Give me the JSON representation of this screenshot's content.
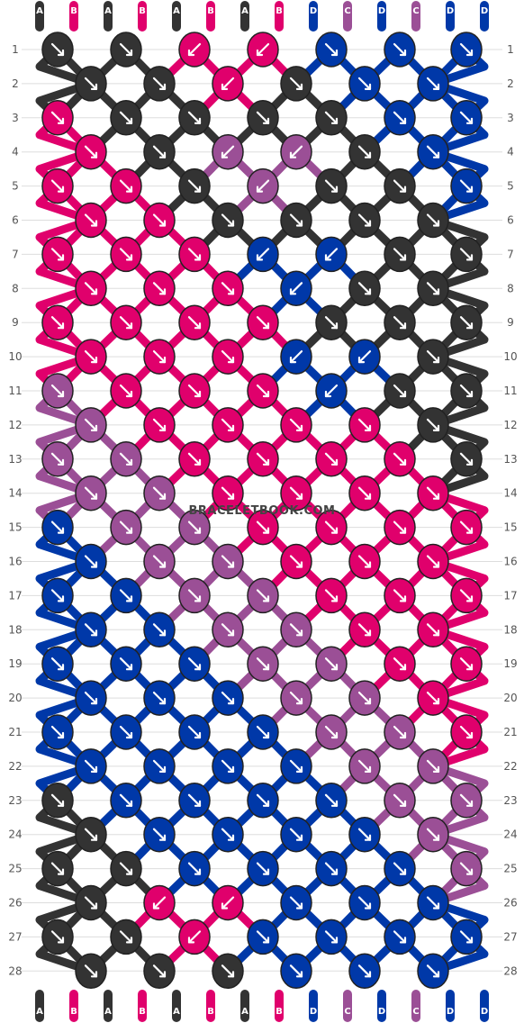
{
  "watermark": "BRACELETBOOK.COM",
  "colors": {
    "A": "#333333",
    "B": "#e0006c",
    "C": "#9b4f96",
    "D": "#0038a8"
  },
  "strands": [
    "A",
    "B",
    "A",
    "B",
    "A",
    "B",
    "A",
    "B",
    "D",
    "C",
    "D",
    "C",
    "D",
    "D"
  ],
  "rows": [
    {
      "n": "1",
      "knots": [
        {
          "c": "A",
          "d": "r"
        },
        {
          "c": "A",
          "d": "r"
        },
        {
          "c": "B",
          "d": "l"
        },
        {
          "c": "B",
          "d": "l"
        },
        {
          "c": "D",
          "d": "r"
        },
        {
          "c": "D",
          "d": "r"
        },
        {
          "c": "D",
          "d": "r"
        }
      ]
    },
    {
      "n": "2",
      "knots": [
        {
          "c": "A",
          "d": "r"
        },
        {
          "c": "A",
          "d": "r"
        },
        {
          "c": "B",
          "d": "l"
        },
        {
          "c": "A",
          "d": "r"
        },
        {
          "c": "D",
          "d": "r"
        },
        {
          "c": "D",
          "d": "r"
        }
      ]
    },
    {
      "n": "3",
      "knots": [
        {
          "c": "B",
          "d": "r"
        },
        {
          "c": "A",
          "d": "r"
        },
        {
          "c": "A",
          "d": "r"
        },
        {
          "c": "A",
          "d": "r"
        },
        {
          "c": "A",
          "d": "r"
        },
        {
          "c": "D",
          "d": "r"
        },
        {
          "c": "D",
          "d": "r"
        }
      ]
    },
    {
      "n": "4",
      "knots": [
        {
          "c": "B",
          "d": "r"
        },
        {
          "c": "A",
          "d": "r"
        },
        {
          "c": "C",
          "d": "l"
        },
        {
          "c": "C",
          "d": "l"
        },
        {
          "c": "A",
          "d": "r"
        },
        {
          "c": "D",
          "d": "r"
        }
      ]
    },
    {
      "n": "5",
      "knots": [
        {
          "c": "B",
          "d": "r"
        },
        {
          "c": "B",
          "d": "r"
        },
        {
          "c": "A",
          "d": "r"
        },
        {
          "c": "C",
          "d": "l"
        },
        {
          "c": "A",
          "d": "r"
        },
        {
          "c": "A",
          "d": "r"
        },
        {
          "c": "D",
          "d": "r"
        }
      ]
    },
    {
      "n": "6",
      "knots": [
        {
          "c": "B",
          "d": "r"
        },
        {
          "c": "B",
          "d": "r"
        },
        {
          "c": "A",
          "d": "r"
        },
        {
          "c": "A",
          "d": "r"
        },
        {
          "c": "A",
          "d": "r"
        },
        {
          "c": "A",
          "d": "r"
        }
      ]
    },
    {
      "n": "7",
      "knots": [
        {
          "c": "B",
          "d": "r"
        },
        {
          "c": "B",
          "d": "r"
        },
        {
          "c": "B",
          "d": "r"
        },
        {
          "c": "D",
          "d": "l"
        },
        {
          "c": "D",
          "d": "l"
        },
        {
          "c": "A",
          "d": "r"
        },
        {
          "c": "A",
          "d": "r"
        }
      ]
    },
    {
      "n": "8",
      "knots": [
        {
          "c": "B",
          "d": "r"
        },
        {
          "c": "B",
          "d": "r"
        },
        {
          "c": "B",
          "d": "r"
        },
        {
          "c": "D",
          "d": "l"
        },
        {
          "c": "A",
          "d": "r"
        },
        {
          "c": "A",
          "d": "r"
        }
      ]
    },
    {
      "n": "9",
      "knots": [
        {
          "c": "B",
          "d": "r"
        },
        {
          "c": "B",
          "d": "r"
        },
        {
          "c": "B",
          "d": "r"
        },
        {
          "c": "B",
          "d": "r"
        },
        {
          "c": "A",
          "d": "r"
        },
        {
          "c": "A",
          "d": "r"
        },
        {
          "c": "A",
          "d": "r"
        }
      ]
    },
    {
      "n": "10",
      "knots": [
        {
          "c": "B",
          "d": "r"
        },
        {
          "c": "B",
          "d": "r"
        },
        {
          "c": "B",
          "d": "r"
        },
        {
          "c": "D",
          "d": "l"
        },
        {
          "c": "D",
          "d": "l"
        },
        {
          "c": "A",
          "d": "r"
        }
      ]
    },
    {
      "n": "11",
      "knots": [
        {
          "c": "C",
          "d": "r"
        },
        {
          "c": "B",
          "d": "r"
        },
        {
          "c": "B",
          "d": "r"
        },
        {
          "c": "B",
          "d": "r"
        },
        {
          "c": "D",
          "d": "l"
        },
        {
          "c": "A",
          "d": "r"
        },
        {
          "c": "A",
          "d": "r"
        }
      ]
    },
    {
      "n": "12",
      "knots": [
        {
          "c": "C",
          "d": "r"
        },
        {
          "c": "B",
          "d": "r"
        },
        {
          "c": "B",
          "d": "r"
        },
        {
          "c": "B",
          "d": "r"
        },
        {
          "c": "B",
          "d": "r"
        },
        {
          "c": "A",
          "d": "r"
        }
      ]
    },
    {
      "n": "13",
      "knots": [
        {
          "c": "C",
          "d": "r"
        },
        {
          "c": "C",
          "d": "r"
        },
        {
          "c": "B",
          "d": "r"
        },
        {
          "c": "B",
          "d": "r"
        },
        {
          "c": "B",
          "d": "r"
        },
        {
          "c": "B",
          "d": "r"
        },
        {
          "c": "A",
          "d": "r"
        }
      ]
    },
    {
      "n": "14",
      "knots": [
        {
          "c": "C",
          "d": "r"
        },
        {
          "c": "C",
          "d": "r"
        },
        {
          "c": "B",
          "d": "r"
        },
        {
          "c": "B",
          "d": "r"
        },
        {
          "c": "B",
          "d": "r"
        },
        {
          "c": "B",
          "d": "r"
        }
      ]
    },
    {
      "n": "15",
      "knots": [
        {
          "c": "D",
          "d": "r"
        },
        {
          "c": "C",
          "d": "r"
        },
        {
          "c": "C",
          "d": "r"
        },
        {
          "c": "B",
          "d": "r"
        },
        {
          "c": "B",
          "d": "r"
        },
        {
          "c": "B",
          "d": "r"
        },
        {
          "c": "B",
          "d": "r"
        }
      ]
    },
    {
      "n": "16",
      "knots": [
        {
          "c": "D",
          "d": "r"
        },
        {
          "c": "C",
          "d": "r"
        },
        {
          "c": "C",
          "d": "r"
        },
        {
          "c": "B",
          "d": "r"
        },
        {
          "c": "B",
          "d": "r"
        },
        {
          "c": "B",
          "d": "r"
        }
      ]
    },
    {
      "n": "17",
      "knots": [
        {
          "c": "D",
          "d": "r"
        },
        {
          "c": "D",
          "d": "r"
        },
        {
          "c": "C",
          "d": "r"
        },
        {
          "c": "C",
          "d": "r"
        },
        {
          "c": "B",
          "d": "r"
        },
        {
          "c": "B",
          "d": "r"
        },
        {
          "c": "B",
          "d": "r"
        }
      ]
    },
    {
      "n": "18",
      "knots": [
        {
          "c": "D",
          "d": "r"
        },
        {
          "c": "D",
          "d": "r"
        },
        {
          "c": "C",
          "d": "r"
        },
        {
          "c": "C",
          "d": "r"
        },
        {
          "c": "B",
          "d": "r"
        },
        {
          "c": "B",
          "d": "r"
        }
      ]
    },
    {
      "n": "19",
      "knots": [
        {
          "c": "D",
          "d": "r"
        },
        {
          "c": "D",
          "d": "r"
        },
        {
          "c": "D",
          "d": "r"
        },
        {
          "c": "C",
          "d": "r"
        },
        {
          "c": "C",
          "d": "r"
        },
        {
          "c": "B",
          "d": "r"
        },
        {
          "c": "B",
          "d": "r"
        }
      ]
    },
    {
      "n": "20",
      "knots": [
        {
          "c": "D",
          "d": "r"
        },
        {
          "c": "D",
          "d": "r"
        },
        {
          "c": "D",
          "d": "r"
        },
        {
          "c": "C",
          "d": "r"
        },
        {
          "c": "C",
          "d": "r"
        },
        {
          "c": "B",
          "d": "r"
        }
      ]
    },
    {
      "n": "21",
      "knots": [
        {
          "c": "D",
          "d": "r"
        },
        {
          "c": "D",
          "d": "r"
        },
        {
          "c": "D",
          "d": "r"
        },
        {
          "c": "D",
          "d": "r"
        },
        {
          "c": "C",
          "d": "r"
        },
        {
          "c": "C",
          "d": "r"
        },
        {
          "c": "B",
          "d": "r"
        }
      ]
    },
    {
      "n": "22",
      "knots": [
        {
          "c": "D",
          "d": "r"
        },
        {
          "c": "D",
          "d": "r"
        },
        {
          "c": "D",
          "d": "r"
        },
        {
          "c": "D",
          "d": "r"
        },
        {
          "c": "C",
          "d": "r"
        },
        {
          "c": "C",
          "d": "r"
        }
      ]
    },
    {
      "n": "23",
      "knots": [
        {
          "c": "A",
          "d": "r"
        },
        {
          "c": "D",
          "d": "r"
        },
        {
          "c": "D",
          "d": "r"
        },
        {
          "c": "D",
          "d": "r"
        },
        {
          "c": "D",
          "d": "r"
        },
        {
          "c": "C",
          "d": "r"
        },
        {
          "c": "C",
          "d": "r"
        }
      ]
    },
    {
      "n": "24",
      "knots": [
        {
          "c": "A",
          "d": "r"
        },
        {
          "c": "D",
          "d": "r"
        },
        {
          "c": "D",
          "d": "r"
        },
        {
          "c": "D",
          "d": "r"
        },
        {
          "c": "D",
          "d": "r"
        },
        {
          "c": "C",
          "d": "r"
        }
      ]
    },
    {
      "n": "25",
      "knots": [
        {
          "c": "A",
          "d": "r"
        },
        {
          "c": "A",
          "d": "r"
        },
        {
          "c": "D",
          "d": "r"
        },
        {
          "c": "D",
          "d": "r"
        },
        {
          "c": "D",
          "d": "r"
        },
        {
          "c": "D",
          "d": "r"
        },
        {
          "c": "C",
          "d": "r"
        }
      ]
    },
    {
      "n": "26",
      "knots": [
        {
          "c": "A",
          "d": "r"
        },
        {
          "c": "B",
          "d": "l"
        },
        {
          "c": "B",
          "d": "l"
        },
        {
          "c": "D",
          "d": "r"
        },
        {
          "c": "D",
          "d": "r"
        },
        {
          "c": "D",
          "d": "r"
        }
      ]
    },
    {
      "n": "27",
      "knots": [
        {
          "c": "A",
          "d": "r"
        },
        {
          "c": "A",
          "d": "r"
        },
        {
          "c": "B",
          "d": "l"
        },
        {
          "c": "D",
          "d": "r"
        },
        {
          "c": "D",
          "d": "r"
        },
        {
          "c": "D",
          "d": "r"
        },
        {
          "c": "D",
          "d": "r"
        }
      ]
    },
    {
      "n": "28",
      "knots": [
        {
          "c": "A",
          "d": "r"
        },
        {
          "c": "A",
          "d": "r"
        },
        {
          "c": "A",
          "d": "r"
        },
        {
          "c": "D",
          "d": "r"
        },
        {
          "c": "D",
          "d": "r"
        },
        {
          "c": "D",
          "d": "r"
        }
      ]
    }
  ],
  "bottom_strands": [
    "A",
    "B",
    "A",
    "B",
    "A",
    "B",
    "A",
    "B",
    "D",
    "C",
    "D",
    "C",
    "D",
    "D"
  ]
}
